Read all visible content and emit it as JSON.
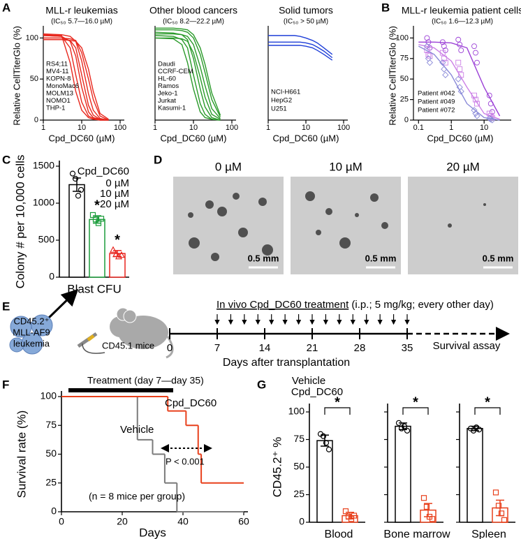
{
  "panel_labels": [
    "A",
    "B",
    "C",
    "D",
    "E",
    "F",
    "G"
  ],
  "chart_data": [
    {
      "type": "line",
      "title": "MLL-r leukemias",
      "subtitle": "(IC₅₀ 5.7—16.0 µM)",
      "title_color": "#e8281e",
      "xlabel": "Cpd_DC60 (µM)",
      "ylabel": "Relative CellTiterGlo (%)",
      "log_x": true,
      "xlim": [
        1,
        100
      ],
      "ylim": [
        0,
        108
      ],
      "xticks": [
        1,
        10,
        100
      ],
      "yticks": [
        0,
        50,
        100
      ],
      "x": [
        1,
        3,
        5,
        7,
        10,
        15,
        20,
        30,
        50
      ],
      "series": [
        {
          "name": "RS4;11",
          "color": "#e8281e",
          "values": [
            104,
            103,
            70,
            35,
            12,
            3,
            1,
            0,
            0
          ]
        },
        {
          "name": "MV4-11",
          "color": "#e8281e",
          "values": [
            103,
            102,
            88,
            55,
            22,
            5,
            2,
            0,
            0
          ]
        },
        {
          "name": "KOPN-8",
          "color": "#e8281e",
          "values": [
            103,
            102,
            96,
            78,
            40,
            10,
            3,
            1,
            0
          ]
        },
        {
          "name": "MonoMac6",
          "color": "#e8281e",
          "values": [
            100,
            100,
            97,
            88,
            55,
            18,
            6,
            1,
            0
          ]
        },
        {
          "name": "MOLM13",
          "color": "#e8281e",
          "values": [
            105,
            104,
            102,
            96,
            72,
            32,
            12,
            2,
            0
          ]
        },
        {
          "name": "NOMO1",
          "color": "#e8281e",
          "values": [
            100,
            100,
            99,
            97,
            82,
            50,
            25,
            5,
            0
          ]
        },
        {
          "name": "THP-1",
          "color": "#e8281e",
          "values": [
            98,
            98,
            97,
            96,
            88,
            62,
            35,
            8,
            1
          ]
        }
      ]
    },
    {
      "type": "line",
      "title": "Other blood cancers",
      "subtitle": "(IC₅₀ 8.2—22.2 µM)",
      "title_color": "#2a9a2a",
      "xlabel": "Cpd_DC60 (µM)",
      "log_x": true,
      "xlim": [
        1,
        100
      ],
      "ylim": [
        0,
        108
      ],
      "xticks": [
        1,
        10,
        100
      ],
      "x": [
        1,
        3,
        5,
        7,
        10,
        15,
        20,
        30,
        50
      ],
      "series": [
        {
          "name": "Daudi",
          "color": "#2a9a2a",
          "values": [
            100,
            99,
            92,
            70,
            38,
            10,
            3,
            1,
            0
          ]
        },
        {
          "name": "CCRF-CEM",
          "color": "#2a9a2a",
          "values": [
            103,
            102,
            98,
            88,
            55,
            20,
            7,
            1,
            0
          ]
        },
        {
          "name": "HL-60",
          "color": "#2a9a2a",
          "values": [
            107,
            106,
            104,
            98,
            75,
            38,
            16,
            3,
            0
          ]
        },
        {
          "name": "Ramos",
          "color": "#2a9a2a",
          "values": [
            100,
            100,
            99,
            96,
            82,
            52,
            28,
            7,
            1
          ]
        },
        {
          "name": "Jeko-1",
          "color": "#2a9a2a",
          "values": [
            105,
            105,
            104,
            102,
            92,
            65,
            42,
            14,
            2
          ]
        },
        {
          "name": "Jurkat",
          "color": "#2a9a2a",
          "values": [
            110,
            110,
            109,
            107,
            100,
            80,
            58,
            25,
            4
          ]
        },
        {
          "name": "Kasumi-1",
          "color": "#2a9a2a",
          "values": [
            112,
            112,
            111,
            110,
            104,
            88,
            68,
            33,
            6
          ]
        }
      ]
    },
    {
      "type": "line",
      "title": "Solid tumors",
      "subtitle": "(IC₅₀ > 50 µM)",
      "title_color": "#1f3fd8",
      "xlabel": "Cpd_DC60 (µM)",
      "log_x": true,
      "xlim": [
        1,
        100
      ],
      "ylim": [
        0,
        108
      ],
      "xticks": [
        1,
        10,
        100
      ],
      "x": [
        1,
        3,
        5,
        7,
        10,
        15,
        20,
        30,
        50
      ],
      "series": [
        {
          "name": "NCI-H661",
          "color": "#1f3fd8",
          "values": [
            103,
            103,
            103,
            102,
            100,
            97,
            94,
            88,
            80
          ]
        },
        {
          "name": "HepG2",
          "color": "#1f3fd8",
          "values": [
            95,
            95,
            95,
            95,
            94,
            92,
            89,
            84,
            76
          ]
        },
        {
          "name": "U251",
          "color": "#1f3fd8",
          "values": [
            91,
            91,
            91,
            91,
            90,
            88,
            85,
            80,
            73
          ]
        }
      ]
    },
    {
      "type": "line",
      "title": "MLL-r leukemia patient cells",
      "subtitle": "(IC₅₀ 1.6—12.3 µM)",
      "title_color": "#a040e0",
      "xlabel": "Cpd_DC60 (µM)",
      "ylabel": "Relative CellTiterGlo (%)",
      "log_x": true,
      "xlim": [
        0.07,
        50
      ],
      "ylim": [
        0,
        108
      ],
      "xticks": [
        0.1,
        1,
        10
      ],
      "yticks": [
        0,
        25,
        50,
        75,
        100
      ],
      "series": [
        {
          "name": "Patient #042",
          "color": "#9b3fd6",
          "x": [
            0.1,
            0.3,
            1,
            3,
            10,
            30
          ],
          "values": [
            95,
            95,
            94,
            88,
            40,
            5
          ],
          "points": {
            "x": [
              0.2,
              0.2,
              0.2,
              0.6,
              0.6,
              0.6,
              1.8,
              1.8,
              1.8,
              5.5,
              5.5,
              5.5,
              16,
              16,
              16
            ],
            "y": [
              100,
              95,
              88,
              95,
              90,
              85,
              98,
              92,
              85,
              90,
              82,
              70,
              30,
              20,
              10
            ]
          }
        },
        {
          "name": "Patient #049",
          "color": "#cc80e6",
          "x": [
            0.1,
            0.3,
            1,
            3,
            10,
            30
          ],
          "values": [
            92,
            88,
            72,
            40,
            8,
            1
          ],
          "points": {
            "x": [
              0.2,
              0.2,
              0.2,
              0.6,
              0.6,
              0.6,
              1.8,
              1.8,
              1.8,
              5.5,
              5.5,
              5.5,
              16,
              16,
              16
            ],
            "y": [
              85,
              80,
              78,
              82,
              75,
              70,
              70,
              62,
              55,
              30,
              25,
              20,
              8,
              5,
              3
            ]
          }
        },
        {
          "name": "Patient #072",
          "color": "#8a8ad8",
          "x": [
            0.1,
            0.3,
            1,
            3,
            10,
            30
          ],
          "values": [
            90,
            80,
            55,
            20,
            3,
            0
          ],
          "points": {
            "x": [
              0.2,
              0.2,
              0.2,
              0.6,
              0.6,
              0.6,
              1.8,
              1.8,
              1.8,
              5.5,
              5.5,
              5.5,
              16,
              16,
              16
            ],
            "y": [
              90,
              75,
              70,
              70,
              62,
              55,
              50,
              40,
              35,
              12,
              8,
              5,
              2,
              1,
              0
            ]
          }
        }
      ]
    },
    {
      "type": "bar",
      "ylabel": "Colony # per 10,000 cells",
      "xlabel": "Blast CFU",
      "legend_title": "Cpd_DC60",
      "ylim": [
        0,
        1500
      ],
      "yticks": [
        0,
        500,
        1000,
        1500
      ],
      "categories": [
        "0 µM",
        "10 µM",
        "20 µM"
      ],
      "colors": [
        "#000000",
        "#1a9c3a",
        "#e8231d"
      ],
      "values": [
        1250,
        780,
        320
      ],
      "errors": [
        90,
        50,
        40
      ],
      "points": [
        [
          1400,
          1330,
          1100,
          1180
        ],
        [
          840,
          780,
          730,
          790
        ],
        [
          370,
          310,
          280,
          300
        ]
      ],
      "annotations": [
        null,
        "*",
        "*"
      ]
    },
    {
      "type": "step",
      "xlabel": "Days",
      "ylabel": "Survival rate (%)",
      "xlim": [
        0,
        60
      ],
      "ylim": [
        0,
        100
      ],
      "xticks": [
        0,
        20,
        40,
        60
      ],
      "yticks": [
        0,
        25,
        50,
        75,
        100
      ],
      "treatment_label": "Treatment (day 7—day 35)",
      "annotations": [
        "P < 0.001",
        "(n = 8 mice per group)"
      ],
      "series": [
        {
          "name": "Vehicle",
          "color": "#7a7a7a",
          "x": [
            0,
            25,
            30,
            34,
            38
          ],
          "values": [
            100,
            62.5,
            50,
            25,
            0
          ]
        },
        {
          "name": "Cpd_DC60",
          "color": "#e8401c",
          "x": [
            0,
            35,
            41,
            45,
            46
          ],
          "values": [
            100,
            87.5,
            75,
            50,
            25
          ]
        }
      ]
    },
    {
      "type": "bar",
      "ylabel": "CD45.2⁺ %",
      "ylim": [
        0,
        100
      ],
      "yticks": [
        0,
        25,
        50,
        75,
        100
      ],
      "categories": [
        "Blood",
        "Bone marrow",
        "Spleen"
      ],
      "annotations": [
        "*",
        "*",
        "*"
      ],
      "series": [
        {
          "name": "Vehicle",
          "color": "#000000",
          "values": [
            74,
            87,
            85
          ],
          "errors": [
            5,
            3,
            2
          ],
          "points": [
            [
              80,
              78,
              72,
              66
            ],
            [
              90,
              85,
              87,
              83
            ],
            [
              85,
              83,
              86,
              84
            ]
          ]
        },
        {
          "name": "Cpd_DC60",
          "color": "#e8401c",
          "values": [
            6,
            11,
            13
          ],
          "errors": [
            3,
            6,
            7
          ],
          "points": [
            [
              10,
              5,
              3,
              6
            ],
            [
              22,
              14,
              5,
              3
            ],
            [
              27,
              15,
              8,
              2
            ]
          ]
        }
      ]
    }
  ],
  "panel_d": {
    "images": [
      {
        "title": "0 µM",
        "scale": "0.5 mm"
      },
      {
        "title": "10 µM",
        "scale": "0.5 mm"
      },
      {
        "title": "20 µM",
        "scale": "0.5 mm"
      }
    ]
  },
  "panel_e": {
    "cells_text": [
      "CD45.2⁺",
      "MLL-AF9",
      "leukemia"
    ],
    "mice_text": "CD45.1 mice",
    "treatment_title": "In vivo Cpd_DC60 treatment",
    "treatment_details": " (i.p.; 5 mg/kg; every other day)",
    "timeline": {
      "xlim": [
        0,
        35
      ],
      "ticks": [
        0,
        7,
        14,
        21,
        28,
        35
      ],
      "dose_days": [
        7,
        9,
        11,
        13,
        15,
        17,
        19,
        21,
        23,
        25,
        27,
        29,
        31,
        33,
        35
      ],
      "xlabel": "Days after transplantation"
    },
    "survival_text": "Survival assay"
  }
}
